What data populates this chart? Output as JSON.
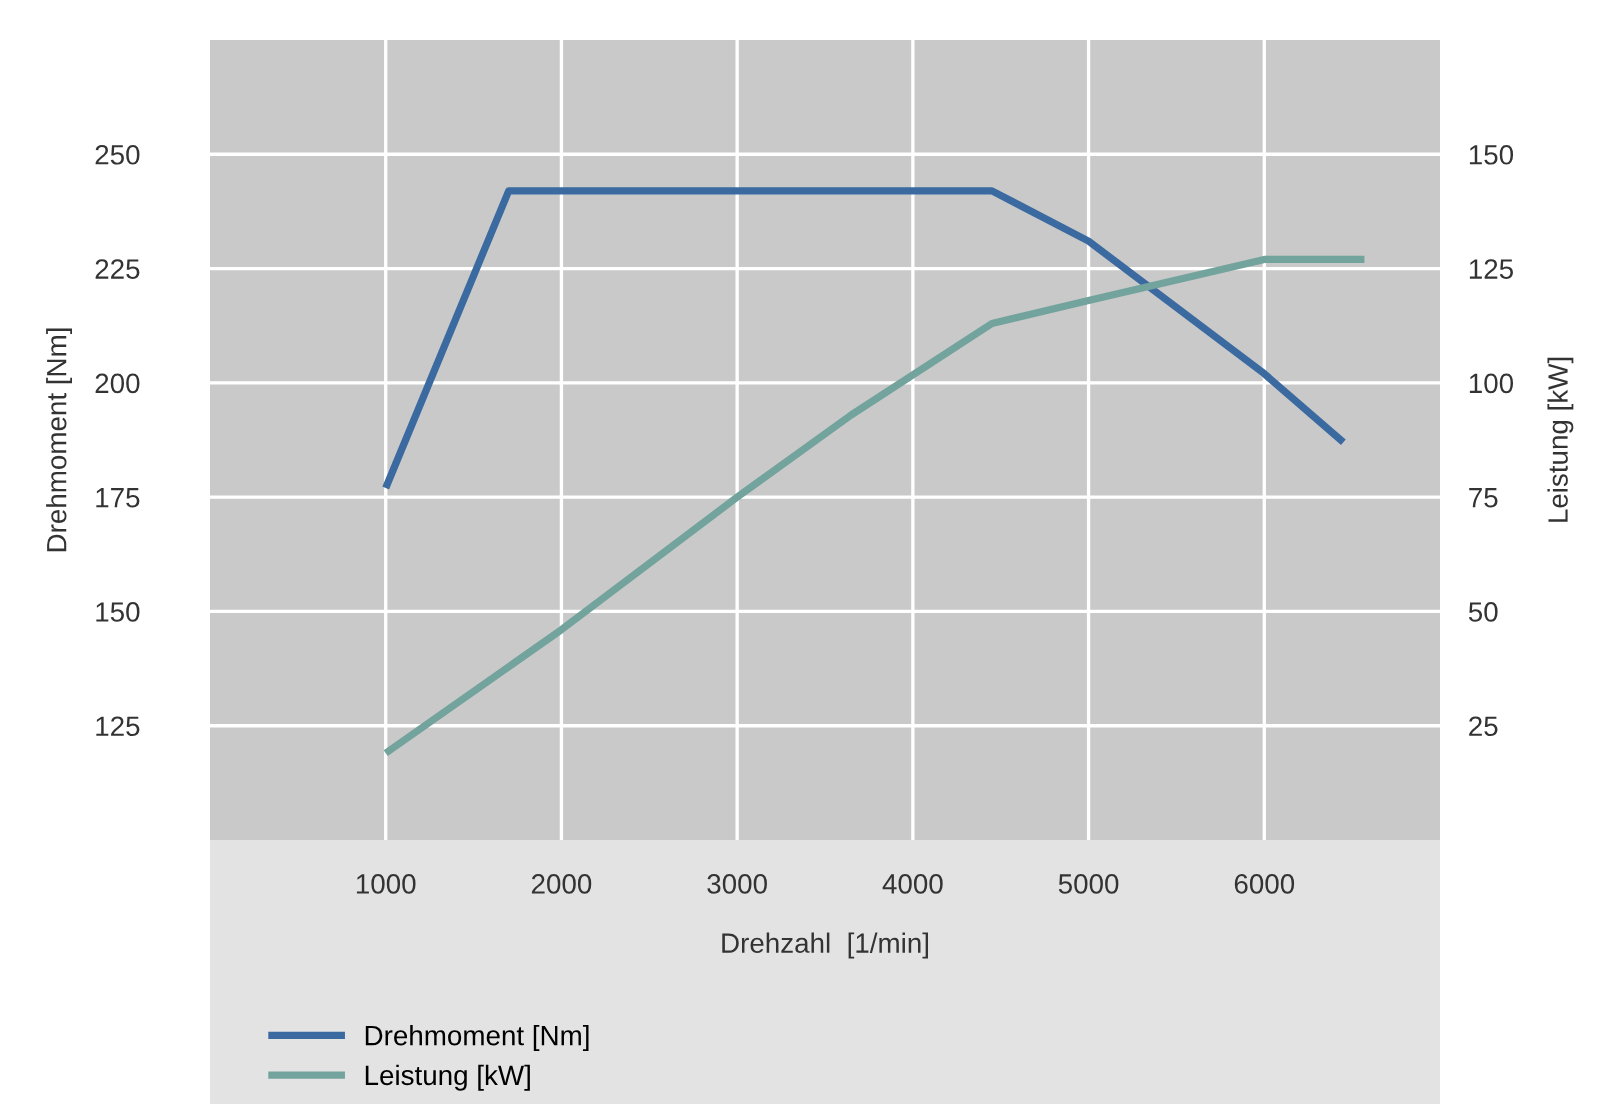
{
  "chart_data": {
    "type": "line",
    "xlabel": "Drehzahl  [1/min]",
    "ylabel": "Drehmoment [Nm]",
    "y2label": "Leistung [kW]",
    "xlim": [
      0,
      7000
    ],
    "xticks": [
      1000,
      2000,
      3000,
      4000,
      5000,
      6000
    ],
    "ylim": [
      100,
      275
    ],
    "yticks": [
      125,
      150,
      175,
      200,
      225,
      250
    ],
    "y2lim": [
      0,
      175
    ],
    "y2ticks": [
      25,
      50,
      75,
      100,
      125,
      150
    ],
    "grid": true,
    "legend": "bottom",
    "marker": "none",
    "line_style": "solid",
    "series": [
      {
        "name": "Drehmoment [Nm]",
        "color": "#3b6aa0",
        "x": [
          1000,
          1700,
          4450,
          5000,
          6000,
          6450
        ],
        "values": [
          177,
          242,
          242,
          231,
          202,
          187
        ]
      },
      {
        "name": "Leistung [kW]",
        "color": "#72a39c",
        "axis": "y2",
        "x": [
          1000,
          2000,
          3000,
          3650,
          4450,
          5000,
          6000,
          6570
        ],
        "values": [
          19,
          46,
          75,
          93,
          113,
          118,
          127,
          127
        ]
      }
    ]
  }
}
